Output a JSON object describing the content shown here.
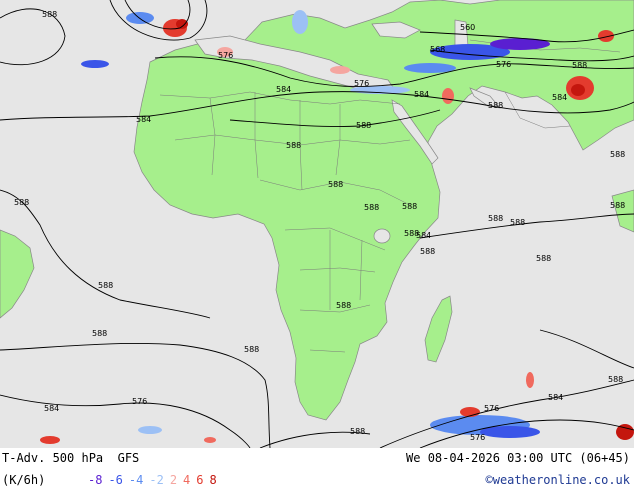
{
  "footer": {
    "title": "T-Adv. 500 hPa",
    "model": "GFS",
    "datetime": "We 08-04-2026 03:00 UTC (06+45)",
    "units": "(K/6h)",
    "credit": "©weatheronline.co.uk",
    "legend": [
      {
        "label": "-8",
        "color": "#5a1fd1"
      },
      {
        "label": "-6",
        "color": "#3a55e8"
      },
      {
        "label": "-4",
        "color": "#5b8bf0"
      },
      {
        "label": "-2",
        "color": "#9cc0f5"
      },
      {
        "label": "2",
        "color": "#f5a6a0"
      },
      {
        "label": "4",
        "color": "#f06a5e"
      },
      {
        "label": "6",
        "color": "#e33b2e"
      },
      {
        "label": "8",
        "color": "#c4160e"
      }
    ]
  },
  "map": {
    "ocean_color": "#e6e6e6",
    "land_color": "#a6ef8c",
    "contour_labels": [
      "588",
      "576",
      "588",
      "560",
      "568",
      "576",
      "576",
      "588",
      "588",
      "584",
      "584",
      "584",
      "584",
      "588",
      "588",
      "588",
      "588",
      "588",
      "588",
      "588",
      "588",
      "588",
      "588",
      "588",
      "588",
      "588",
      "588",
      "588",
      "584",
      "584",
      "576",
      "576",
      "576",
      "588",
      "584",
      "588",
      "588"
    ]
  }
}
